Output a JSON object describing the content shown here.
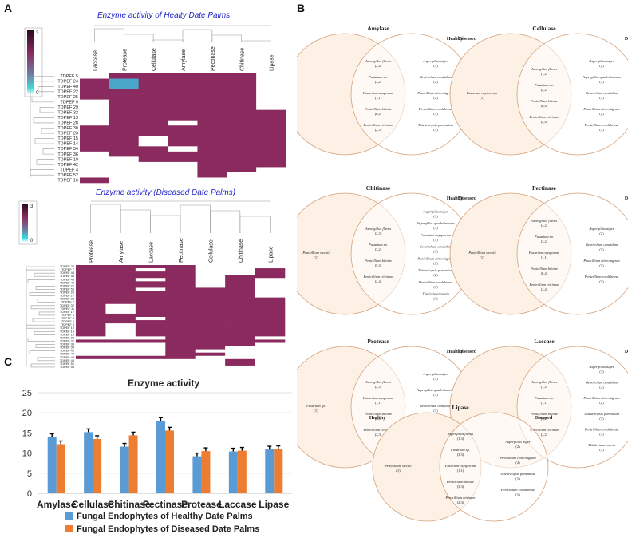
{
  "panels": {
    "a": "A",
    "b": "B",
    "c": "C"
  },
  "colors": {
    "legend_top": "#2a0a1e",
    "legend_mid": "#8a2a5e",
    "legend_low": "#33dde0",
    "legend_zero": "#ffffff",
    "healthy_bar": "#5b9bd5",
    "diseased_bar": "#ed7d31",
    "venn_fill": "#fdf1e6",
    "venn_stroke": "#d4a17a"
  },
  "heatmaps": [
    {
      "title": "Enzyme activity of Healty Date Palms",
      "scale_max": "3",
      "scale_min": "0",
      "columns": [
        "Laccase",
        "Protease",
        "Cellulase",
        "Amylase",
        "Pectinase",
        "Chitinase",
        "Lipase"
      ],
      "rows": [
        "TDPEF 5",
        "TDPEF 24",
        "TDPEF 40",
        "TDPEF 22",
        "TDPEF 25",
        "TDPEF 9",
        "TDPEF 29",
        "TDPEF 32",
        "TDPEF 13",
        "TDPEF 28",
        "TDPEF 30",
        "TDPEF 23",
        "TDPEF 15",
        "TDPEF 14",
        "TDPEF 34",
        "TDPEF 36",
        "TDPEF 10",
        "TDPEF 42",
        "TDPEF 4",
        "TDPEF 52",
        "TDPEF 16"
      ],
      "values": [
        [
          0,
          2,
          2,
          2,
          2,
          2,
          0
        ],
        [
          2,
          1,
          2,
          2,
          2,
          2,
          0
        ],
        [
          2,
          1,
          2,
          2,
          2,
          2,
          0
        ],
        [
          2,
          2,
          2,
          2,
          2,
          2,
          0
        ],
        [
          2,
          2,
          2,
          2,
          2,
          2,
          0
        ],
        [
          0,
          2,
          2,
          2,
          2,
          2,
          0
        ],
        [
          0,
          2,
          2,
          2,
          2,
          2,
          0
        ],
        [
          0,
          2,
          2,
          2,
          2,
          2,
          2
        ],
        [
          0,
          2,
          2,
          2,
          2,
          2,
          2
        ],
        [
          0,
          2,
          2,
          0,
          2,
          2,
          2
        ],
        [
          2,
          2,
          2,
          2,
          2,
          2,
          2
        ],
        [
          2,
          2,
          2,
          2,
          2,
          2,
          2
        ],
        [
          2,
          2,
          0,
          2,
          2,
          2,
          2
        ],
        [
          2,
          2,
          0,
          2,
          2,
          2,
          2
        ],
        [
          2,
          2,
          2,
          0,
          2,
          2,
          2
        ],
        [
          0,
          2,
          2,
          2,
          2,
          2,
          2
        ],
        [
          0,
          0,
          2,
          2,
          2,
          2,
          2
        ],
        [
          0,
          0,
          0,
          0,
          2,
          2,
          2
        ],
        [
          0,
          0,
          0,
          0,
          2,
          2,
          0
        ],
        [
          0,
          0,
          0,
          0,
          2,
          0,
          0
        ],
        [
          2,
          0,
          0,
          0,
          0,
          0,
          0
        ]
      ]
    },
    {
      "title": "Enzyme activity (Diseased Date Palms)",
      "scale_max": "3",
      "scale_min": "0",
      "columns": [
        "Protease",
        "Amylase",
        "Laccase",
        "Pectinase",
        "Cellulase",
        "Chitinase",
        "Lipase"
      ],
      "rows": [
        "TDPEF 20",
        "TDPEF 7",
        "TDPEF 43",
        "TDPEF 45",
        "TDPEF 46",
        "TDPEF 44",
        "TDPEF 21",
        "TDPEF 50",
        "TDPEF 26",
        "TDPEF 27",
        "TDPEF 33",
        "TDPEF 2",
        "TDPEF 37",
        "TDPEF 11",
        "TDPEF 17",
        "TDPEF 1",
        "TDPEF 3",
        "TDPEF 6",
        "TDPEF 8",
        "TDPEF 12",
        "TDPEF 18",
        "TDPEF 19",
        "TDPEF 35",
        "TDPEF 31",
        "TDPEF 38",
        "TDPEF 39",
        "TDPEF 41",
        "TDPEF 47",
        "TDPEF 48",
        "TDPEF 49",
        "TDPEF 51",
        "TDPEF 53"
      ],
      "values": [
        [
          2,
          2,
          2,
          2,
          0,
          0,
          0
        ],
        [
          2,
          2,
          0,
          2,
          0,
          0,
          2
        ],
        [
          2,
          2,
          2,
          2,
          0,
          0,
          2
        ],
        [
          2,
          2,
          2,
          2,
          0,
          2,
          2
        ],
        [
          2,
          2,
          0,
          2,
          0,
          2,
          0
        ],
        [
          2,
          2,
          2,
          2,
          0,
          2,
          0
        ],
        [
          2,
          2,
          2,
          2,
          0,
          2,
          0
        ],
        [
          2,
          2,
          0,
          2,
          2,
          2,
          0
        ],
        [
          2,
          2,
          2,
          2,
          2,
          2,
          0
        ],
        [
          2,
          2,
          2,
          2,
          2,
          2,
          0
        ],
        [
          2,
          2,
          2,
          2,
          2,
          2,
          2
        ],
        [
          2,
          2,
          2,
          2,
          2,
          2,
          2
        ],
        [
          2,
          0,
          2,
          2,
          2,
          2,
          2
        ],
        [
          2,
          0,
          2,
          2,
          2,
          2,
          2
        ],
        [
          2,
          0,
          2,
          2,
          2,
          2,
          2
        ],
        [
          2,
          2,
          2,
          2,
          2,
          2,
          2
        ],
        [
          2,
          2,
          0,
          2,
          2,
          2,
          2
        ],
        [
          2,
          2,
          2,
          2,
          2,
          2,
          2
        ],
        [
          2,
          0,
          2,
          2,
          2,
          2,
          2
        ],
        [
          2,
          0,
          2,
          2,
          2,
          2,
          2
        ],
        [
          2,
          0,
          2,
          2,
          2,
          2,
          2
        ],
        [
          2,
          0,
          2,
          2,
          2,
          2,
          2
        ],
        [
          0,
          0,
          0,
          2,
          2,
          2,
          0
        ],
        [
          2,
          2,
          2,
          2,
          2,
          2,
          2
        ],
        [
          0,
          0,
          0,
          2,
          2,
          2,
          0
        ],
        [
          0,
          0,
          0,
          2,
          2,
          0,
          0
        ],
        [
          0,
          0,
          0,
          2,
          0,
          0,
          0
        ],
        [
          0,
          0,
          0,
          2,
          2,
          0,
          0
        ],
        [
          2,
          2,
          2,
          2,
          0,
          0,
          0
        ],
        [
          0,
          0,
          0,
          0,
          0,
          2,
          0
        ],
        [
          0,
          0,
          0,
          0,
          0,
          2,
          0
        ],
        [
          0,
          0,
          0,
          0,
          0,
          0,
          0
        ]
      ]
    }
  ],
  "chart_data": {
    "type": "bar",
    "title": "Enzyme activity",
    "categories": [
      "Amylase",
      "Cellulase",
      "Chitinase",
      "Pectinase",
      "Protease",
      "Laccase",
      "Lipase"
    ],
    "series": [
      {
        "name": "Fungal Endophytes of Healthy Date Palms",
        "values": [
          14,
          15.2,
          11.6,
          18,
          9.2,
          10.4,
          10.9
        ]
      },
      {
        "name": "Fungal Endophytes of Diseased Date Palms",
        "values": [
          12.2,
          13.5,
          14.4,
          15.6,
          10.5,
          10.6,
          11
        ]
      }
    ],
    "ylim": [
      0,
      25
    ],
    "yticks": [
      "0",
      "5",
      "10",
      "15",
      "20",
      "25"
    ],
    "xlabel": "",
    "ylabel": "",
    "grid": true,
    "legend": "bottom"
  },
  "venn": [
    {
      "title": "Amylase",
      "left_label": "Healthy",
      "right_label": "Diseased",
      "healthy_only": [],
      "shared": [
        [
          "Aspergillus flavus",
          "(2,4)"
        ],
        [
          "Fusarium sp.",
          "(3,2)"
        ],
        [
          "Fusarium oxysporum",
          "(1,1)"
        ],
        [
          "Penicillium bilaiae",
          "(6,2)"
        ],
        [
          "Penicillium citrinum",
          "(2,3)"
        ]
      ],
      "diseased_only": [
        [
          "Aspergillus niger",
          "(1)"
        ],
        [
          "Geotrichum candidum",
          "(2)"
        ],
        [
          "Penicillium citreonigrum",
          "(2)"
        ],
        [
          "Penicillium corduhense",
          "(1)"
        ],
        [
          "Thielaviopsis punctulata",
          "(1)"
        ]
      ]
    },
    {
      "title": "Cellulase",
      "left_label": "Healthy",
      "right_label": "Diseased",
      "healthy_only": [
        [
          "Fusarium oxysporum",
          "(1)"
        ]
      ],
      "shared": [
        [
          "Aspergillus flavus",
          "(1,2)"
        ],
        [
          "Fusarium sp.",
          "(2,2)"
        ],
        [
          "Penicillium bilaiae",
          "(6,4)"
        ],
        [
          "Penicillium citrinum",
          "(2,4)"
        ]
      ],
      "diseased_only": [
        [
          "Aspergillus niger",
          "(2)"
        ],
        [
          "Aspergillus quadrilineatus",
          "(1)"
        ],
        [
          "Geotrichum candidum",
          "(3)"
        ],
        [
          "Penicillium citreonigrum",
          "(2)"
        ],
        [
          "Penicillium corduhense",
          "(1)"
        ]
      ]
    },
    {
      "title": "Chitinase",
      "left_label": "Healthy",
      "right_label": "Diseased",
      "healthy_only": [
        [
          "Penicillium steckii",
          "(1)"
        ]
      ],
      "shared": [
        [
          "Aspergillus flavus",
          "(2,3)"
        ],
        [
          "Fusarium sp.",
          "(3,2)"
        ],
        [
          "Penicillium bilaiae",
          "(5,3)"
        ],
        [
          "Penicillium citrinum",
          "(2,4)"
        ]
      ],
      "diseased_only": [
        [
          "Aspergillus niger",
          "(1)"
        ],
        [
          "Aspergillus quadrilineatus",
          "(1)"
        ],
        [
          "Fusarium oxysporum",
          "(1)"
        ],
        [
          "Geotrichum candidum",
          "(3)"
        ],
        [
          "Penicillium citreonigrum",
          "(3)"
        ],
        [
          "Thielaviopsis punctulata",
          "(2)"
        ],
        [
          "Penicillium corduhense",
          "(1)"
        ],
        [
          "Thielavia arenaria",
          "(1)"
        ]
      ]
    },
    {
      "title": "Pectinase",
      "left_label": "Healthy",
      "right_label": "Diseased",
      "healthy_only": [
        [
          "Penicillium steckii",
          "(1)"
        ]
      ],
      "shared": [
        [
          "Aspergillus flavus",
          "(4,2)"
        ],
        [
          "Fusarium sp.",
          "(3,2)"
        ],
        [
          "Fusarium oxysporum",
          "(1,1)"
        ],
        [
          "Penicillium bilaiae",
          "(8,4)"
        ],
        [
          "Penicillium citrinum",
          "(2,4)"
        ]
      ],
      "diseased_only": [
        [
          "Aspergillus niger",
          "(2)"
        ],
        [
          "Geotrichum candidum",
          "(3)"
        ],
        [
          "Penicillium citreonigrum",
          "(3)"
        ],
        [
          "Penicillium corduhense",
          "(1)"
        ]
      ]
    },
    {
      "title": "Protease",
      "left_label": "Healthy",
      "right_label": "Diseased",
      "healthy_only": [
        [
          "Fusarium sp.",
          "(1)"
        ]
      ],
      "shared": [
        [
          "Aspergillus flavus",
          "(2,3)"
        ],
        [
          "Fusarium oxysporum",
          "(1,1)"
        ],
        [
          "Penicillium bilaiae",
          "(8,4)"
        ],
        [
          "Penicillium citrinum",
          "(2,3)"
        ]
      ],
      "diseased_only": [
        [
          "Aspergillus niger",
          "(1)"
        ],
        [
          "Aspergillus quadrilineatus",
          "(1)"
        ],
        [
          "Geotrichum candidum",
          "(3)"
        ],
        [
          "Penicillium citreonigrum",
          "(1)"
        ],
        [
          "Thielaviopsis punctulata",
          "(1)"
        ]
      ]
    },
    {
      "title": "Laccase",
      "left_label": "Healthy",
      "right_label": "Diseased",
      "healthy_only": [],
      "shared": [
        [
          "Aspergillus flavus",
          "(1,2)"
        ],
        [
          "Fusarium sp.",
          "(1,1)"
        ],
        [
          "Penicillium bilaiae",
          "(3,2)"
        ],
        [
          "Penicillium citrinum",
          "(2,2)"
        ]
      ],
      "diseased_only": [
        [
          "Aspergillus niger",
          "(1)"
        ],
        [
          "Geotrichum candidum",
          "(2)"
        ],
        [
          "Penicillium citreonigrum",
          "(2)"
        ],
        [
          "Thielaviopsis punctulata",
          "(1)"
        ],
        [
          "Penicillium corduhense",
          "(1)"
        ],
        [
          "Thielavia arenaria",
          "(1)"
        ]
      ]
    },
    {
      "title": "Lipase",
      "left_label": "Healthy",
      "right_label": "Diseased",
      "healthy_only": [
        [
          "Penicillium steckii",
          "(1)"
        ]
      ],
      "shared": [
        [
          "Aspergillus flavus",
          "(1,3)"
        ],
        [
          "Fusarium sp.",
          "(3,3)"
        ],
        [
          "Fusarium oxysporum",
          "(1,1)"
        ],
        [
          "Penicillium bilaiae",
          "(3,3)"
        ],
        [
          "Penicillium citrinum",
          "(2,3)"
        ]
      ],
      "diseased_only": [
        [
          "Aspergillus niger",
          "(2)"
        ],
        [
          "Penicillium citreonigrum",
          "(2)"
        ],
        [
          "Thielaviopsis punctulata",
          "(1)"
        ],
        [
          "Penicillium corduhense",
          "(1)"
        ]
      ]
    }
  ]
}
